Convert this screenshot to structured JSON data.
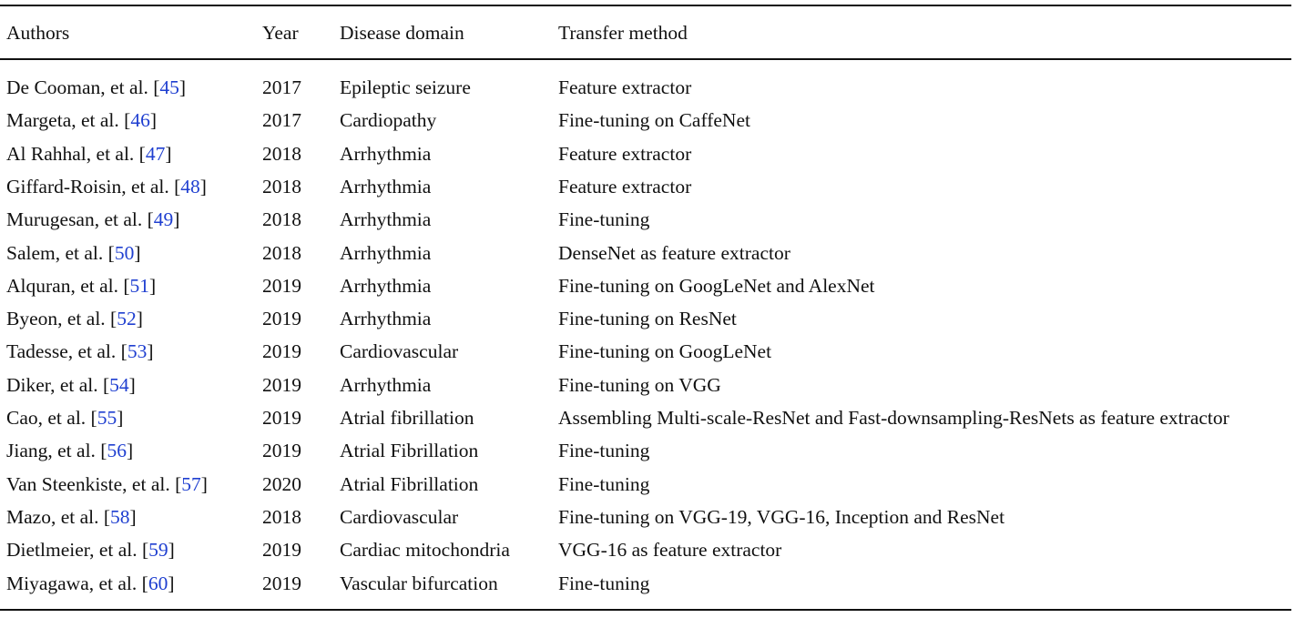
{
  "table": {
    "headers": {
      "authors": "Authors",
      "year": "Year",
      "domain": "Disease domain",
      "method": "Transfer method"
    },
    "rows": [
      {
        "author": "De Cooman, et al. [",
        "ref": "45",
        "close": "]",
        "year": "2017",
        "domain": "Epileptic seizure",
        "method": "Feature extractor"
      },
      {
        "author": "Margeta, et al. [",
        "ref": "46",
        "close": "]",
        "year": "2017",
        "domain": "Cardiopathy",
        "method": "Fine-tuning on CaffeNet"
      },
      {
        "author": "Al Rahhal, et al. [",
        "ref": "47",
        "close": "]",
        "year": "2018",
        "domain": "Arrhythmia",
        "method": "Feature extractor"
      },
      {
        "author": "Giffard-Roisin, et al. [",
        "ref": "48",
        "close": "]",
        "year": "2018",
        "domain": "Arrhythmia",
        "method": "Feature extractor"
      },
      {
        "author": "Murugesan, et al. [",
        "ref": "49",
        "close": "]",
        "year": "2018",
        "domain": "Arrhythmia",
        "method": "Fine-tuning"
      },
      {
        "author": "Salem, et al. [",
        "ref": "50",
        "close": "]",
        "year": "2018",
        "domain": "Arrhythmia",
        "method": "DenseNet as feature extractor"
      },
      {
        "author": "Alquran, et al. [",
        "ref": "51",
        "close": "]",
        "year": "2019",
        "domain": "Arrhythmia",
        "method": "Fine-tuning on GoogLeNet and AlexNet"
      },
      {
        "author": "Byeon, et al. [",
        "ref": "52",
        "close": "]",
        "year": "2019",
        "domain": "Arrhythmia",
        "method": "Fine-tuning on ResNet"
      },
      {
        "author": "Tadesse, et al. [",
        "ref": "53",
        "close": "]",
        "year": "2019",
        "domain": "Cardiovascular",
        "method": "Fine-tuning on GoogLeNet"
      },
      {
        "author": "Diker, et al. [",
        "ref": "54",
        "close": "]",
        "year": "2019",
        "domain": "Arrhythmia",
        "method": "Fine-tuning on VGG"
      },
      {
        "author": "Cao, et al. [",
        "ref": "55",
        "close": "]",
        "year": "2019",
        "domain": "Atrial fibrillation",
        "method": "Assembling Multi-scale-ResNet and Fast-downsampling-ResNets as feature extractor"
      },
      {
        "author": "Jiang, et al. [",
        "ref": "56",
        "close": "]",
        "year": "2019",
        "domain": "Atrial Fibrillation",
        "method": "Fine-tuning"
      },
      {
        "author": "Van Steenkiste, et al. [",
        "ref": "57",
        "close": "]",
        "year": "2020",
        "domain": "Atrial Fibrillation",
        "method": "Fine-tuning"
      },
      {
        "author": "Mazo, et al. [",
        "ref": "58",
        "close": "]",
        "year": "2018",
        "domain": "Cardiovascular",
        "method": "Fine-tuning on VGG-19, VGG-16, Inception and ResNet"
      },
      {
        "author": "Dietlmeier, et al. [",
        "ref": "59",
        "close": "]",
        "year": "2019",
        "domain": "Cardiac mitochondria",
        "method": "VGG-16 as feature extractor"
      },
      {
        "author": "Miyagawa, et al. [",
        "ref": "60",
        "close": "]",
        "year": "2019",
        "domain": "Vascular bifurcation",
        "method": "Fine-tuning"
      }
    ]
  },
  "colors": {
    "text": "#111111",
    "reference_link": "#1f3fd0",
    "rule": "#111111"
  }
}
